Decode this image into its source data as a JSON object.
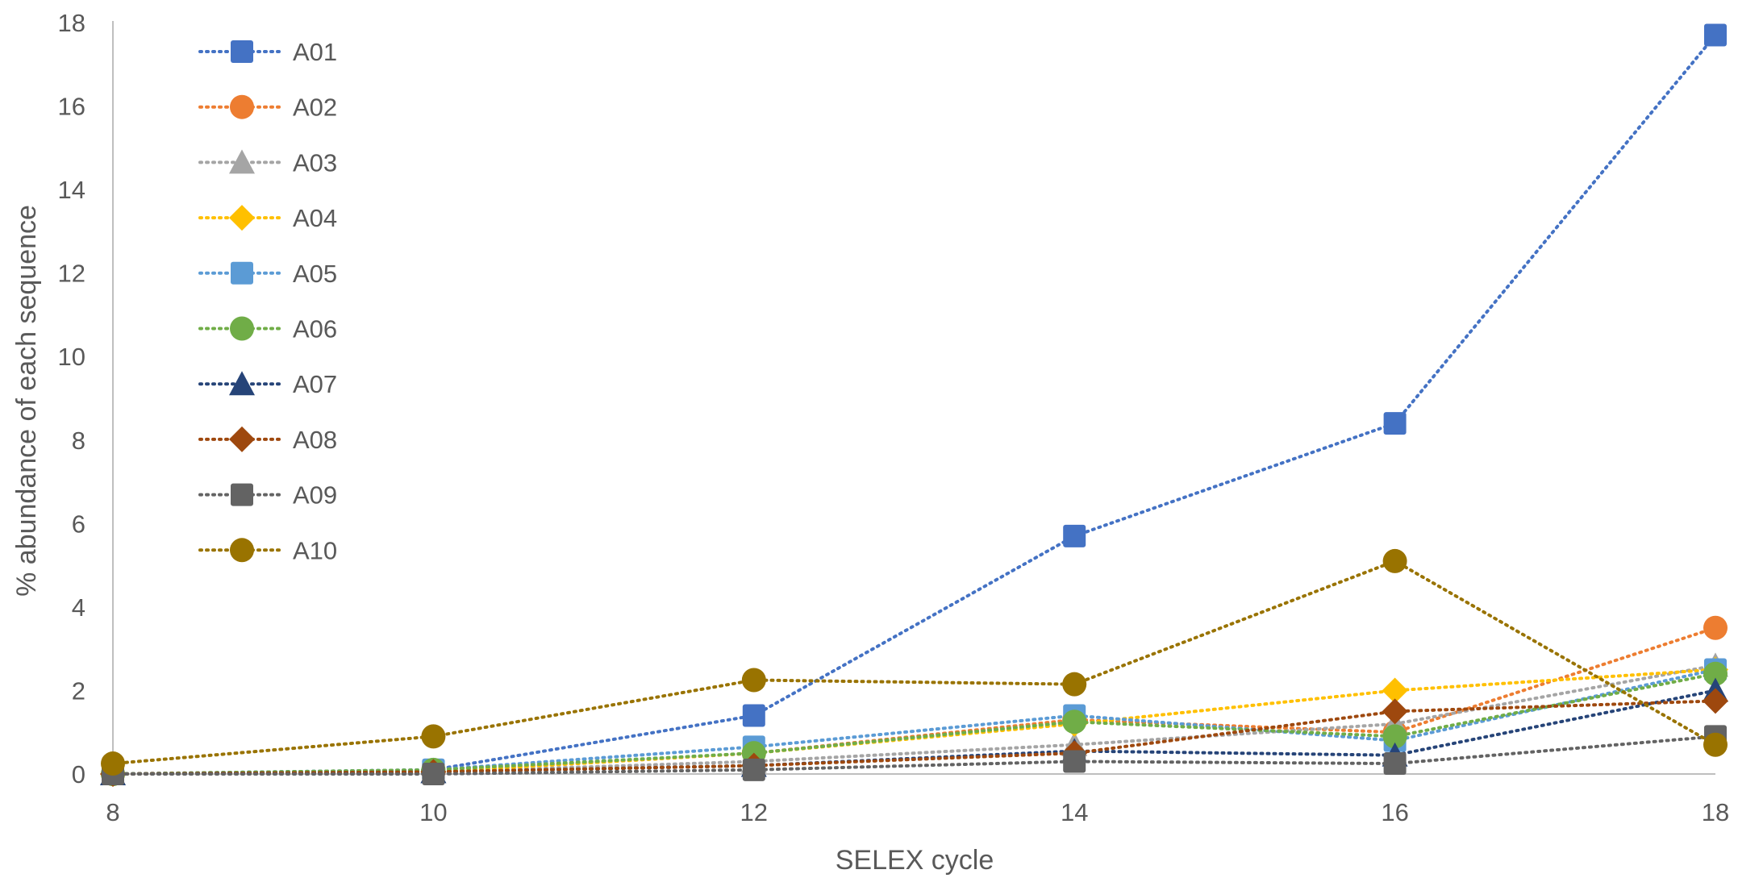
{
  "chart_data": {
    "type": "line",
    "xlabel": "SELEX cycle",
    "ylabel": "% abundance of each sequence",
    "x": [
      8,
      10,
      12,
      14,
      16,
      18
    ],
    "xlim": [
      8,
      18
    ],
    "ylim": [
      0,
      18
    ],
    "xticks": [
      "8",
      "10",
      "12",
      "14",
      "16",
      "18"
    ],
    "yticks": [
      "0",
      "2",
      "4",
      "6",
      "8",
      "10",
      "12",
      "14",
      "16",
      "18"
    ],
    "grid": false,
    "legend_position": "top-left",
    "line_style": "dotted",
    "series": [
      {
        "name": "A01",
        "color": "#4472C4",
        "marker": "square",
        "values": [
          0,
          0.1,
          1.4,
          5.7,
          8.4,
          17.7
        ]
      },
      {
        "name": "A02",
        "color": "#ED7D31",
        "marker": "circle",
        "values": [
          0,
          0.05,
          0.5,
          1.3,
          1.0,
          3.5
        ]
      },
      {
        "name": "A03",
        "color": "#A5A5A5",
        "marker": "triangle",
        "values": [
          0,
          0.05,
          0.3,
          0.7,
          1.2,
          2.6
        ]
      },
      {
        "name": "A04",
        "color": "#FFC000",
        "marker": "diamond",
        "values": [
          0,
          0.05,
          0.5,
          1.2,
          2.0,
          2.5
        ]
      },
      {
        "name": "A05",
        "color": "#5B9BD5",
        "marker": "square",
        "values": [
          0,
          0.1,
          0.65,
          1.4,
          0.8,
          2.5
        ]
      },
      {
        "name": "A06",
        "color": "#70AD47",
        "marker": "circle",
        "values": [
          0,
          0.1,
          0.5,
          1.25,
          0.9,
          2.4
        ]
      },
      {
        "name": "A07",
        "color": "#264478",
        "marker": "triangle",
        "values": [
          0,
          0.05,
          0.2,
          0.55,
          0.45,
          2.0
        ]
      },
      {
        "name": "A08",
        "color": "#9E480E",
        "marker": "diamond",
        "values": [
          0,
          0.05,
          0.2,
          0.5,
          1.5,
          1.75
        ]
      },
      {
        "name": "A09",
        "color": "#636363",
        "marker": "square",
        "values": [
          0,
          0,
          0.1,
          0.3,
          0.25,
          0.9
        ]
      },
      {
        "name": "A10",
        "color": "#997300",
        "marker": "circle",
        "values": [
          0.25,
          0.9,
          2.25,
          2.15,
          5.1,
          0.7
        ]
      }
    ]
  }
}
